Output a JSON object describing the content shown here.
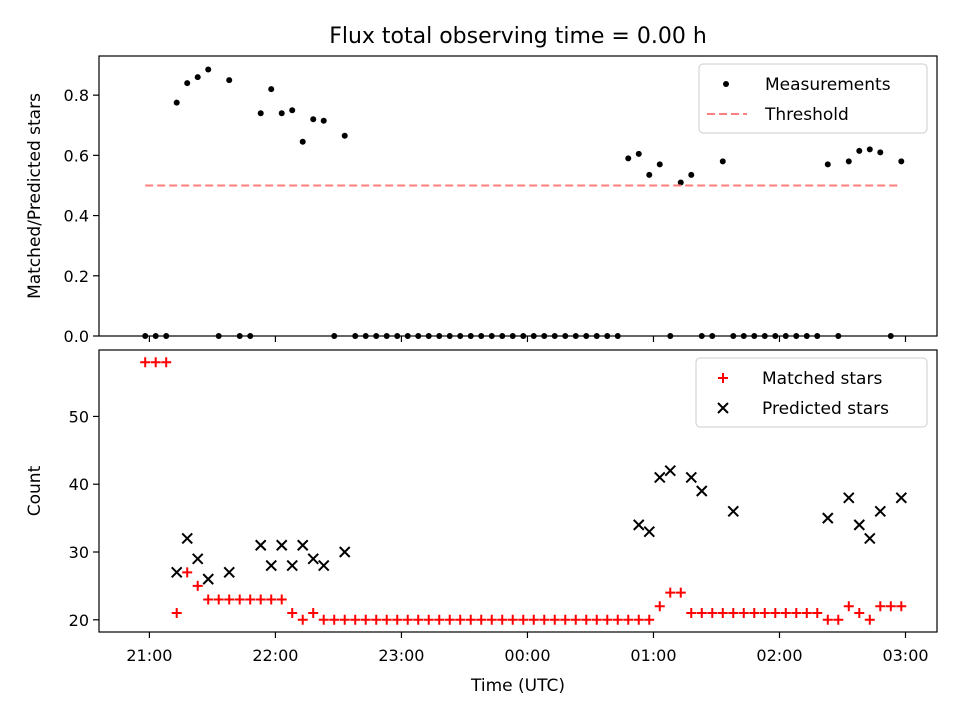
{
  "figure_title": "Flux total observing time = 0.00 h",
  "colors": {
    "measurement": "#000000",
    "threshold": "#ff7f7f",
    "matched": "#ff0000",
    "predicted": "#000000",
    "axes": "#000000"
  },
  "chart_data": [
    {
      "type": "scatter",
      "title": "Flux total observing time = 0.00 h",
      "xlabel": "",
      "ylabel": "Matched/Predicted stars",
      "x_ticks": [
        "21:00",
        "22:00",
        "23:00",
        "00:00",
        "01:00",
        "02:00",
        "03:00"
      ],
      "xlim_hours": [
        20.6,
        27.25
      ],
      "ylim": [
        0,
        0.93
      ],
      "y_ticks": [
        "0.0",
        "0.2",
        "0.4",
        "0.6",
        "0.8"
      ],
      "y_tick_values": [
        0,
        0.2,
        0.4,
        0.6,
        0.8
      ],
      "legend_position": "top-right",
      "series": [
        {
          "name": "Measurements",
          "marker": "dot",
          "x": [
            "20:58",
            "21:03",
            "21:08",
            "21:13",
            "21:18",
            "21:23",
            "21:28",
            "21:33",
            "21:38",
            "21:43",
            "21:48",
            "21:53",
            "21:58",
            "22:03",
            "22:08",
            "22:13",
            "22:18",
            "22:23",
            "22:28",
            "22:33",
            "22:38",
            "22:43",
            "22:48",
            "22:53",
            "22:58",
            "23:03",
            "23:08",
            "23:13",
            "23:18",
            "23:23",
            "23:28",
            "23:33",
            "23:38",
            "23:43",
            "23:48",
            "23:53",
            "23:58",
            "00:03",
            "00:08",
            "00:13",
            "00:18",
            "00:23",
            "00:28",
            "00:33",
            "00:38",
            "00:43",
            "00:48",
            "00:53",
            "00:58",
            "01:03",
            "01:08",
            "01:13",
            "01:18",
            "01:23",
            "01:28",
            "01:33",
            "01:38",
            "01:43",
            "01:48",
            "01:53",
            "01:58",
            "02:03",
            "02:08",
            "02:13",
            "02:18",
            "02:23",
            "02:28",
            "02:33",
            "02:38",
            "02:43",
            "02:48",
            "02:53",
            "02:58"
          ],
          "y": [
            0,
            0,
            0,
            0.775,
            0.84,
            0.86,
            0.885,
            0,
            0.85,
            0,
            0,
            0.74,
            0.82,
            0.74,
            0.75,
            0.645,
            0.72,
            0.715,
            0,
            0.665,
            0,
            0,
            0,
            0,
            0,
            0,
            0,
            0,
            0,
            0,
            0,
            0,
            0,
            0,
            0,
            0,
            0,
            0,
            0,
            0,
            0,
            0,
            0,
            0,
            0,
            0,
            0.59,
            0.605,
            0.535,
            0.57,
            0,
            0.51,
            0.535,
            0,
            0,
            0.58,
            0,
            0,
            0,
            0,
            0,
            0,
            0,
            0,
            0,
            0.57,
            0,
            0.58,
            0.615,
            0.62,
            0.61,
            0,
            0.58
          ]
        },
        {
          "name": "Threshold",
          "style": "dashed",
          "x": [
            "20:58",
            "02:58"
          ],
          "y": [
            0.5,
            0.5
          ]
        }
      ]
    },
    {
      "type": "scatter",
      "title": "",
      "xlabel": "Time (UTC)",
      "ylabel": "Count",
      "x_ticks": [
        "21:00",
        "22:00",
        "23:00",
        "00:00",
        "01:00",
        "02:00",
        "03:00"
      ],
      "xlim_hours": [
        20.6,
        27.25
      ],
      "ylim": [
        18.2,
        59.8
      ],
      "y_ticks": [
        "20",
        "30",
        "40",
        "50"
      ],
      "y_tick_values": [
        20,
        30,
        40,
        50
      ],
      "legend_position": "top-right",
      "series": [
        {
          "name": "Matched stars",
          "marker": "plus",
          "x": [
            "20:58",
            "21:03",
            "21:08",
            "21:13",
            "21:18",
            "21:23",
            "21:28",
            "21:33",
            "21:38",
            "21:43",
            "21:48",
            "21:53",
            "21:58",
            "22:03",
            "22:08",
            "22:13",
            "22:18",
            "22:23",
            "22:28",
            "22:33",
            "22:38",
            "22:43",
            "22:48",
            "22:53",
            "22:58",
            "23:03",
            "23:08",
            "23:13",
            "23:18",
            "23:23",
            "23:28",
            "23:33",
            "23:38",
            "23:43",
            "23:48",
            "23:53",
            "23:58",
            "00:03",
            "00:08",
            "00:13",
            "00:18",
            "00:23",
            "00:28",
            "00:33",
            "00:38",
            "00:43",
            "00:48",
            "00:53",
            "00:58",
            "01:03",
            "01:08",
            "01:13",
            "01:18",
            "01:23",
            "01:28",
            "01:33",
            "01:38",
            "01:43",
            "01:48",
            "01:53",
            "01:58",
            "02:03",
            "02:08",
            "02:13",
            "02:18",
            "02:23",
            "02:28",
            "02:33",
            "02:38",
            "02:43",
            "02:48",
            "02:53",
            "02:58"
          ],
          "y": [
            58,
            58,
            58,
            21,
            27,
            25,
            23,
            23,
            23,
            23,
            23,
            23,
            23,
            23,
            21,
            20,
            21,
            20,
            20,
            20,
            20,
            20,
            20,
            20,
            20,
            20,
            20,
            20,
            20,
            20,
            20,
            20,
            20,
            20,
            20,
            20,
            20,
            20,
            20,
            20,
            20,
            20,
            20,
            20,
            20,
            20,
            20,
            20,
            20,
            22,
            24,
            24,
            21,
            21,
            21,
            21,
            21,
            21,
            21,
            21,
            21,
            21,
            21,
            21,
            21,
            20,
            20,
            22,
            21,
            20,
            22,
            22,
            22
          ]
        },
        {
          "name": "Predicted stars",
          "marker": "cross",
          "x": [
            "21:13",
            "21:18",
            "21:23",
            "21:28",
            "21:38",
            "21:53",
            "21:58",
            "22:03",
            "22:08",
            "22:13",
            "22:18",
            "22:23",
            "22:33",
            "00:53",
            "00:58",
            "01:03",
            "01:08",
            "01:18",
            "01:23",
            "01:38",
            "02:23",
            "02:33",
            "02:38",
            "02:43",
            "02:48",
            "02:58"
          ],
          "y": [
            27,
            32,
            29,
            26,
            27,
            31,
            28,
            31,
            28,
            31,
            29,
            28,
            30,
            34,
            33,
            41,
            42,
            41,
            39,
            36,
            35,
            38,
            34,
            32,
            36,
            38
          ]
        }
      ]
    }
  ]
}
